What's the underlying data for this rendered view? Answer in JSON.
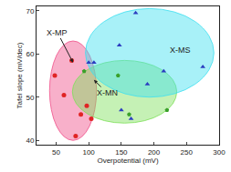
{
  "chart_data": {
    "type": "scatter",
    "x_label": "Overpotential (mV)",
    "y_label": "Tafel slope (mV/dec)",
    "xlim": [
      20,
      300
    ],
    "xticks": [
      50,
      100,
      150,
      200,
      250,
      300
    ],
    "ylim": [
      39,
      71
    ],
    "yticks": [
      40,
      50,
      60,
      70
    ],
    "grid": false,
    "series": [
      {
        "name": "X-MP",
        "color": "#e02424",
        "marker": "circle",
        "x": [
          48,
          62,
          74,
          80,
          88,
          97,
          104
        ],
        "y": [
          55,
          50.5,
          58.5,
          41,
          46,
          48,
          45
        ]
      },
      {
        "name": "X-MN",
        "color": "#3aa02a",
        "marker": "pentagon",
        "x": [
          93,
          145,
          162,
          220
        ],
        "y": [
          56,
          55,
          46,
          47
        ]
      },
      {
        "name": "X-MS",
        "color": "#2a3cc0",
        "marker": "triangle-up",
        "x": [
          100,
          108,
          147,
          150,
          165,
          172,
          190,
          215,
          275
        ],
        "y": [
          58,
          58,
          62,
          47,
          45,
          69.5,
          53,
          56,
          57
        ]
      }
    ],
    "regions": [
      {
        "name": "X-MP",
        "color": "#f0508a",
        "x": [
          40,
          112
        ],
        "y": [
          40,
          63
        ],
        "label_at": [
          52,
          65
        ],
        "points_to": [
          76,
          58
        ]
      },
      {
        "name": "X-MN",
        "color": "#7ee05a",
        "x": [
          75,
          235
        ],
        "y": [
          44,
          58.5
        ],
        "label_at": [
          128,
          51
        ],
        "points_to": [
          108,
          54
        ]
      },
      {
        "name": "X-MS",
        "color": "#3ee0f0",
        "x": [
          95,
          292
        ],
        "y": [
          50,
          70.5
        ],
        "label_at": [
          240,
          61
        ],
        "points_to": null
      }
    ]
  }
}
